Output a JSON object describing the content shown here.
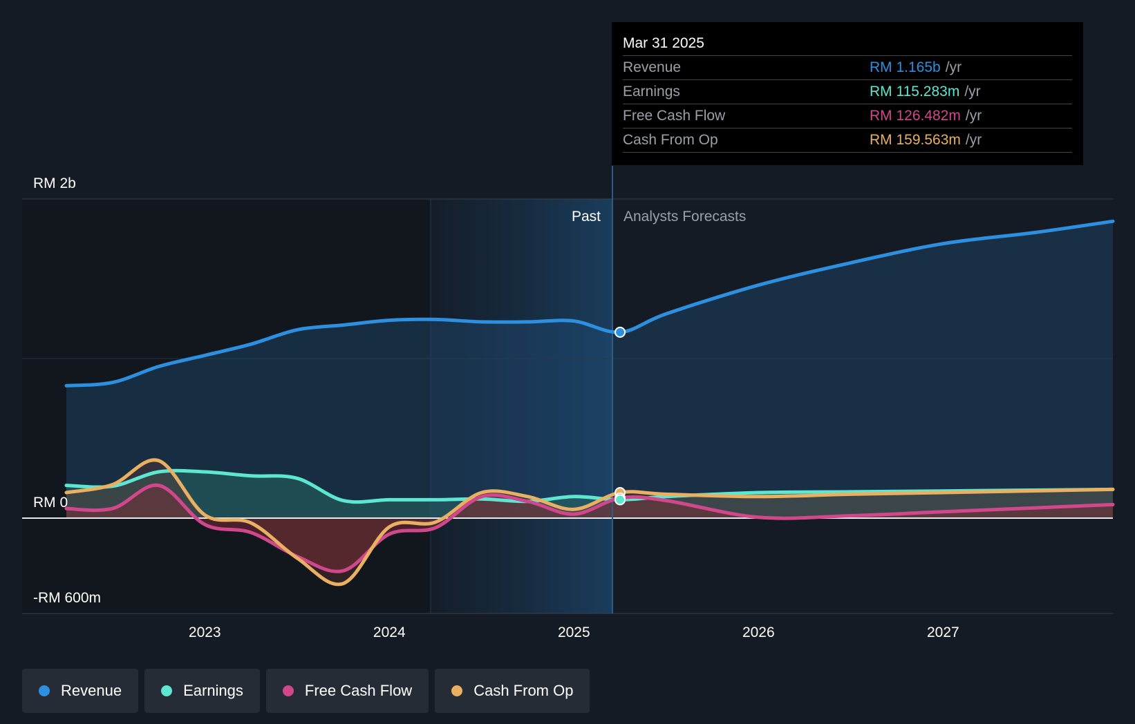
{
  "chart_data": {
    "type": "area",
    "x_range": [
      2022.25,
      2027.92
    ],
    "ylim": [
      -600,
      2000
    ],
    "y_axis_labels": [
      {
        "value": 2000,
        "label": "RM 2b"
      },
      {
        "value": 0,
        "label": "RM 0"
      },
      {
        "value": -600,
        "label": "-RM 600m"
      }
    ],
    "x_ticks": [
      {
        "value": 2023,
        "label": "2023"
      },
      {
        "value": 2024,
        "label": "2024"
      },
      {
        "value": 2025,
        "label": "2025"
      },
      {
        "value": 2026,
        "label": "2026"
      },
      {
        "value": 2027,
        "label": "2027"
      }
    ],
    "past_label": "Past",
    "forecast_label": "Analysts Forecasts",
    "past_divider_x": 2025.25,
    "highlight_start_x": 2024.25,
    "series": [
      {
        "name": "Revenue",
        "color": "#2d8fe0",
        "points": [
          [
            2022.25,
            830
          ],
          [
            2022.5,
            850
          ],
          [
            2022.75,
            950
          ],
          [
            2023.0,
            1020
          ],
          [
            2023.25,
            1090
          ],
          [
            2023.5,
            1180
          ],
          [
            2023.75,
            1210
          ],
          [
            2024.0,
            1240
          ],
          [
            2024.25,
            1245
          ],
          [
            2024.5,
            1230
          ],
          [
            2024.75,
            1230
          ],
          [
            2025.0,
            1235
          ],
          [
            2025.25,
            1165
          ],
          [
            2025.5,
            1280
          ],
          [
            2026.0,
            1460
          ],
          [
            2026.5,
            1600
          ],
          [
            2027.0,
            1720
          ],
          [
            2027.5,
            1790
          ],
          [
            2027.92,
            1860
          ]
        ]
      },
      {
        "name": "Earnings",
        "color": "#5ee7d0",
        "points": [
          [
            2022.25,
            205
          ],
          [
            2022.5,
            200
          ],
          [
            2022.75,
            290
          ],
          [
            2023.0,
            290
          ],
          [
            2023.25,
            265
          ],
          [
            2023.5,
            250
          ],
          [
            2023.75,
            110
          ],
          [
            2024.0,
            115
          ],
          [
            2024.25,
            115
          ],
          [
            2024.5,
            120
          ],
          [
            2024.75,
            105
          ],
          [
            2025.0,
            135
          ],
          [
            2025.25,
            115
          ],
          [
            2025.5,
            135
          ],
          [
            2026.0,
            160
          ],
          [
            2026.5,
            165
          ],
          [
            2027.0,
            170
          ],
          [
            2027.92,
            180
          ]
        ]
      },
      {
        "name": "Free Cash Flow",
        "color": "#d1478c",
        "points": [
          [
            2022.25,
            60
          ],
          [
            2022.5,
            60
          ],
          [
            2022.75,
            205
          ],
          [
            2023.0,
            -40
          ],
          [
            2023.25,
            -90
          ],
          [
            2023.5,
            -240
          ],
          [
            2023.75,
            -330
          ],
          [
            2024.0,
            -100
          ],
          [
            2024.25,
            -60
          ],
          [
            2024.5,
            135
          ],
          [
            2024.75,
            105
          ],
          [
            2025.0,
            25
          ],
          [
            2025.25,
            126
          ],
          [
            2025.5,
            110
          ],
          [
            2026.0,
            5
          ],
          [
            2026.5,
            15
          ],
          [
            2027.0,
            40
          ],
          [
            2027.92,
            85
          ]
        ]
      },
      {
        "name": "Cash From Op",
        "color": "#e9b062",
        "points": [
          [
            2022.25,
            160
          ],
          [
            2022.5,
            210
          ],
          [
            2022.75,
            360
          ],
          [
            2023.0,
            20
          ],
          [
            2023.25,
            -30
          ],
          [
            2023.5,
            -250
          ],
          [
            2023.75,
            -410
          ],
          [
            2024.0,
            -55
          ],
          [
            2024.25,
            -25
          ],
          [
            2024.5,
            160
          ],
          [
            2024.75,
            135
          ],
          [
            2025.0,
            55
          ],
          [
            2025.25,
            160
          ],
          [
            2025.5,
            150
          ],
          [
            2026.0,
            135
          ],
          [
            2026.5,
            150
          ],
          [
            2027.0,
            160
          ],
          [
            2027.92,
            180
          ]
        ]
      }
    ]
  },
  "tooltip": {
    "date": "Mar 31 2025",
    "rows": [
      {
        "label": "Revenue",
        "value": "RM 1.165b",
        "unit": "/yr",
        "color": "#2d8fe0"
      },
      {
        "label": "Earnings",
        "value": "RM 115.283m",
        "unit": "/yr",
        "color": "#5ee7d0"
      },
      {
        "label": "Free Cash Flow",
        "value": "RM 126.482m",
        "unit": "/yr",
        "color": "#d1478c"
      },
      {
        "label": "Cash From Op",
        "value": "RM 159.563m",
        "unit": "/yr",
        "color": "#e9b062"
      }
    ]
  },
  "legend": [
    {
      "label": "Revenue",
      "color": "#2d8fe0"
    },
    {
      "label": "Earnings",
      "color": "#5ee7d0"
    },
    {
      "label": "Free Cash Flow",
      "color": "#d1478c"
    },
    {
      "label": "Cash From Op",
      "color": "#e9b062"
    }
  ]
}
